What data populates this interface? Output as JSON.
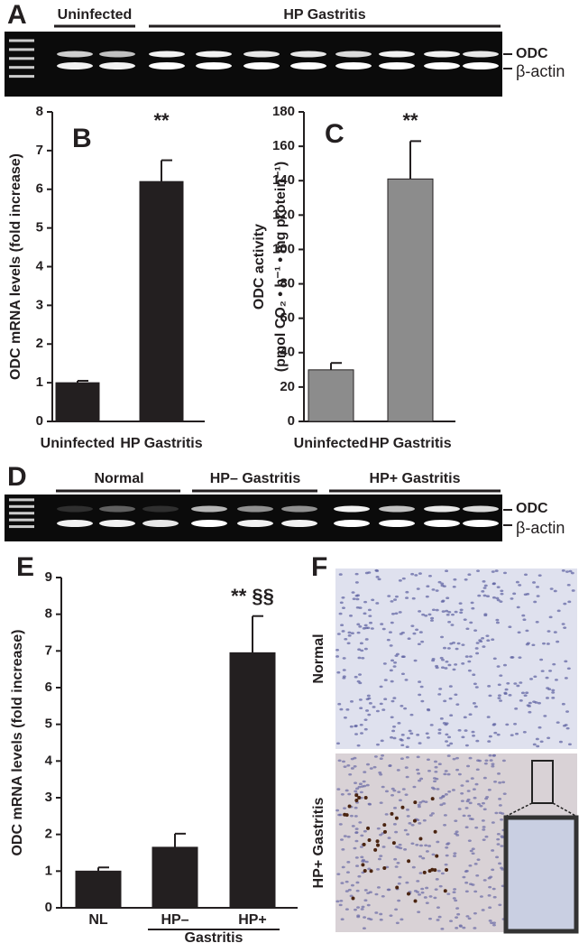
{
  "panels": {
    "a": {
      "label": "A",
      "groups": [
        "Uninfected",
        "HP Gastritis"
      ],
      "bands": [
        "ODC",
        "β-actin"
      ]
    },
    "d": {
      "label": "D",
      "groups": [
        "Normal",
        "HP– Gastritis",
        "HP+ Gastritis"
      ],
      "bands": [
        "ODC",
        "β-actin"
      ]
    },
    "f": {
      "label": "F",
      "rows": [
        "Normal",
        "HP+ Gastritis"
      ]
    }
  },
  "chart_data": [
    {
      "type": "bar",
      "panel": "B",
      "ylabel": [
        "ODC mRNA levels (fold increase)"
      ],
      "categories": [
        "Uninfected",
        "HP Gastritis"
      ],
      "values": [
        1.0,
        6.2
      ],
      "errors": [
        0.05,
        0.55
      ],
      "annotations": [
        "**"
      ],
      "color": "#231f20",
      "ylim": [
        0,
        8
      ],
      "yticks": [
        0,
        1,
        2,
        3,
        4,
        5,
        6,
        7,
        8
      ]
    },
    {
      "type": "bar",
      "panel": "C",
      "ylabel": [
        "ODC activity",
        "(pmol CO₂ • h⁻¹ • mg protein⁻¹)"
      ],
      "categories": [
        "Uninfected",
        "HP Gastritis"
      ],
      "values": [
        30,
        141
      ],
      "errors": [
        4,
        22
      ],
      "annotations": [
        "**"
      ],
      "color": "#8c8c8c",
      "ylim": [
        0,
        180
      ],
      "yticks": [
        0,
        20,
        40,
        60,
        80,
        100,
        120,
        140,
        160,
        180
      ]
    },
    {
      "type": "bar",
      "panel": "E",
      "ylabel": [
        "ODC mRNA levels (fold increase)"
      ],
      "categories": [
        "NL",
        "HP–",
        "HP+"
      ],
      "group_label": "Gastritis",
      "values": [
        1.0,
        1.65,
        6.95
      ],
      "errors": [
        0.1,
        0.37,
        1.0
      ],
      "annotations": [
        "** §§"
      ],
      "color": "#231f20",
      "ylim": [
        0,
        9
      ],
      "yticks": [
        0,
        1,
        2,
        3,
        4,
        5,
        6,
        7,
        8,
        9
      ]
    }
  ]
}
